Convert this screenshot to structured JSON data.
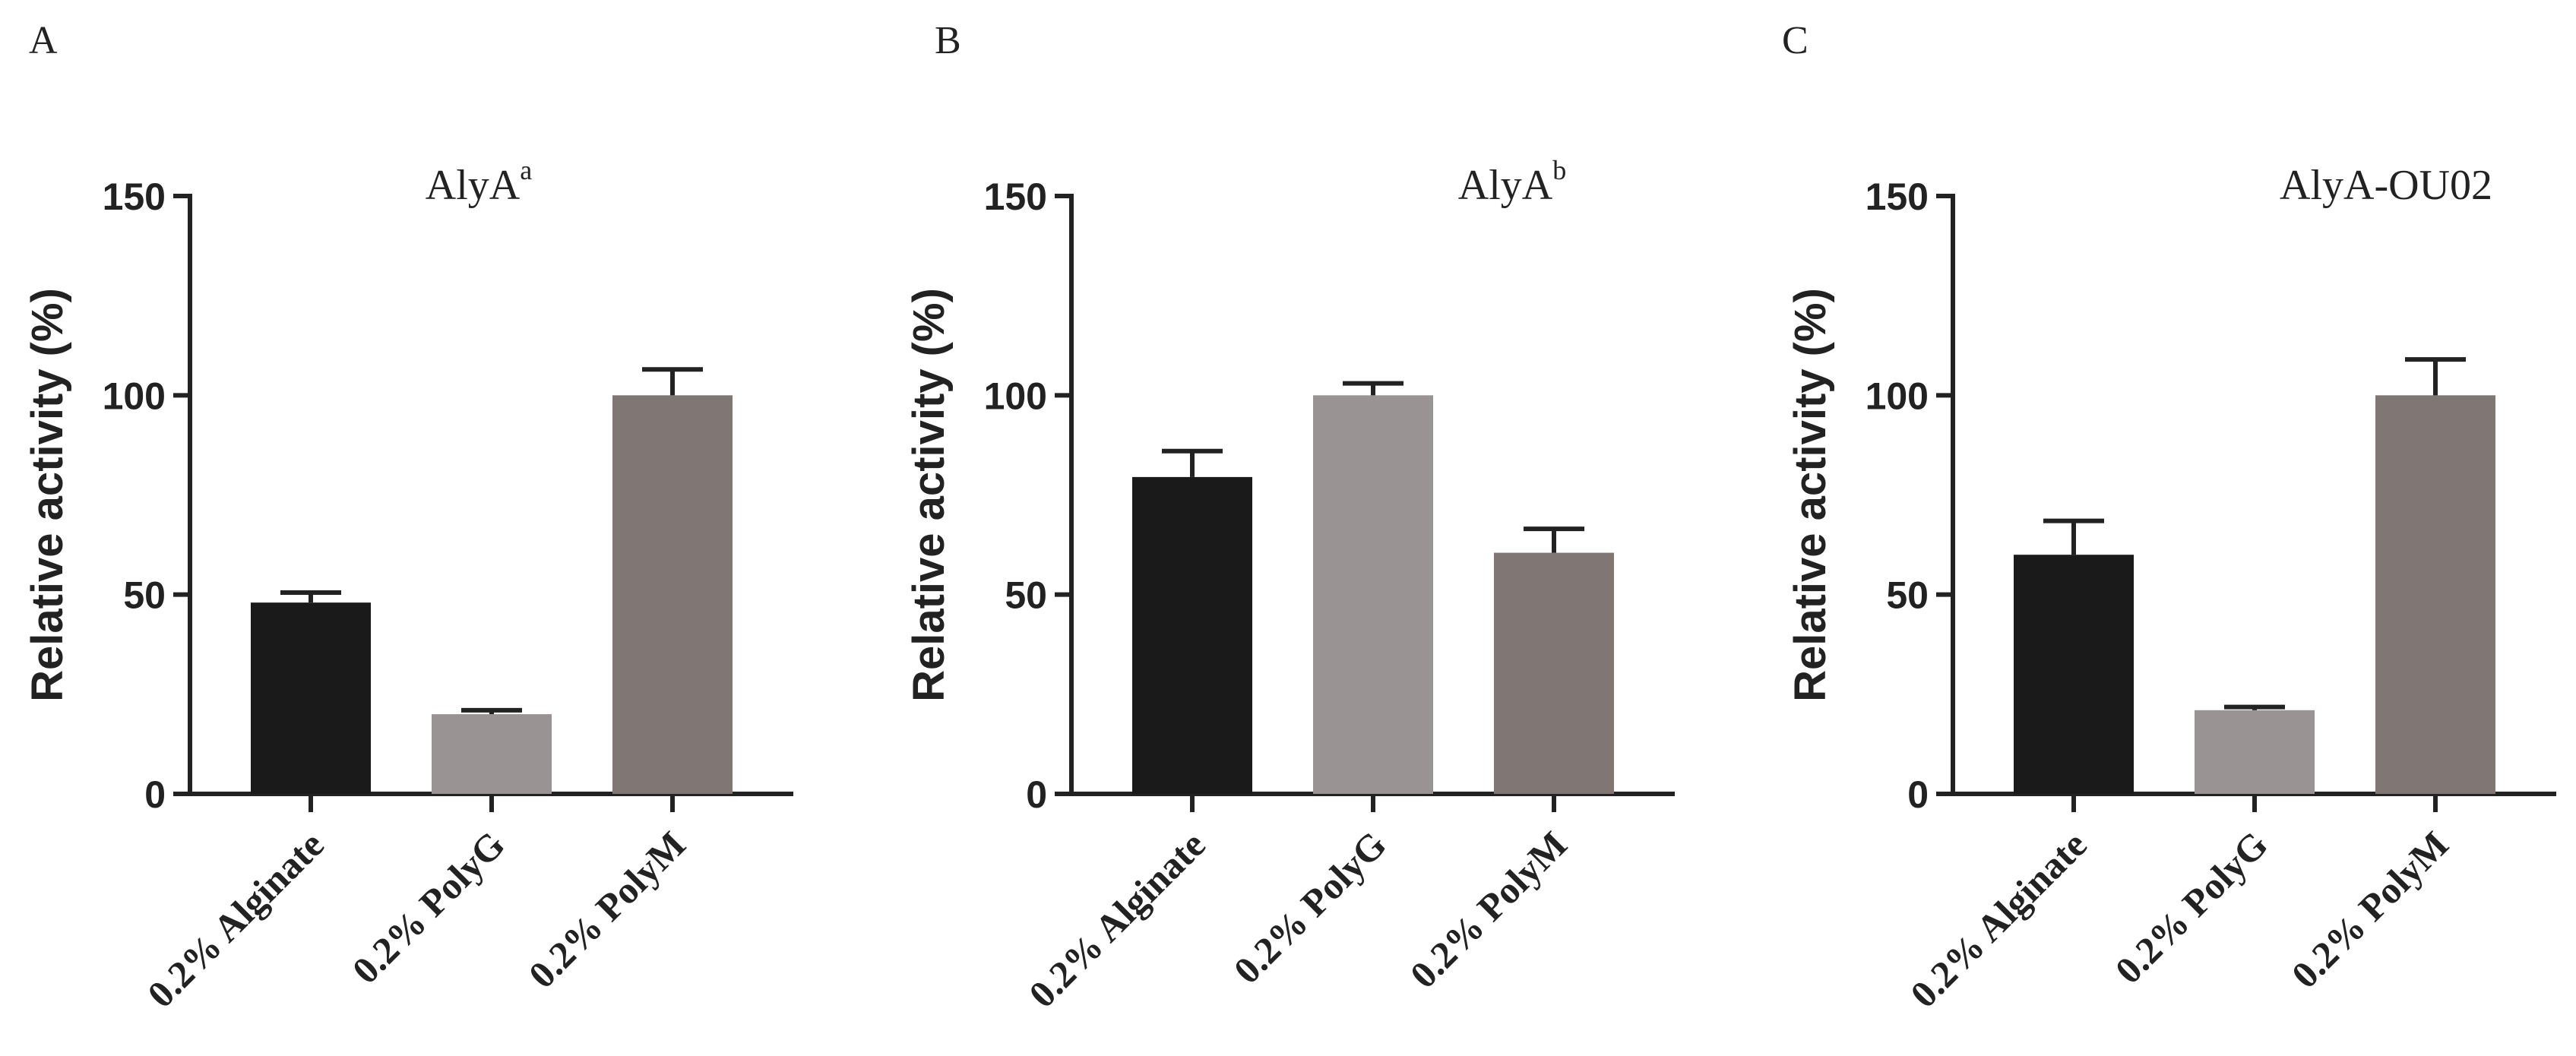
{
  "chart_data": [
    {
      "type": "bar",
      "panel": "A",
      "title": "AlyA",
      "title_sup": "a",
      "ylabel": "Relative activity (%)",
      "xlabel": "",
      "ylim": [
        0,
        150
      ],
      "yticks": [
        "0",
        "50",
        "100",
        "150"
      ],
      "categories": [
        "0.2% Alginate",
        "0.2% PolyG",
        "0.2% PolyM"
      ],
      "values": [
        48,
        20,
        100
      ],
      "errors": [
        2.5,
        1,
        6.5
      ],
      "colors": [
        "#1a1a1a",
        "#9a9393",
        "#807674"
      ]
    },
    {
      "type": "bar",
      "panel": "B",
      "title": "AlyA",
      "title_sup": "b",
      "ylabel": "Relative activity (%)",
      "xlabel": "",
      "ylim": [
        0,
        150
      ],
      "yticks": [
        "0",
        "50",
        "100",
        "150"
      ],
      "categories": [
        "0.2% Alginate",
        "0.2% PolyG",
        "0.2% PolyM"
      ],
      "values": [
        79.5,
        100,
        60.5
      ],
      "errors": [
        6.5,
        3,
        6
      ],
      "colors": [
        "#1a1a1a",
        "#9a9393",
        "#807674"
      ]
    },
    {
      "type": "bar",
      "panel": "C",
      "title": "AlyA-OU02",
      "title_sup": "",
      "ylabel": "Relative activity (%)",
      "xlabel": "",
      "ylim": [
        0,
        150
      ],
      "yticks": [
        "0",
        "50",
        "100",
        "150"
      ],
      "categories": [
        "0.2% Alginate",
        "0.2% PolyG",
        "0.2% PolyM"
      ],
      "values": [
        60,
        21,
        100
      ],
      "errors": [
        8.5,
        0.8,
        9
      ],
      "colors": [
        "#1a1a1a",
        "#9a9393",
        "#807674"
      ]
    }
  ]
}
